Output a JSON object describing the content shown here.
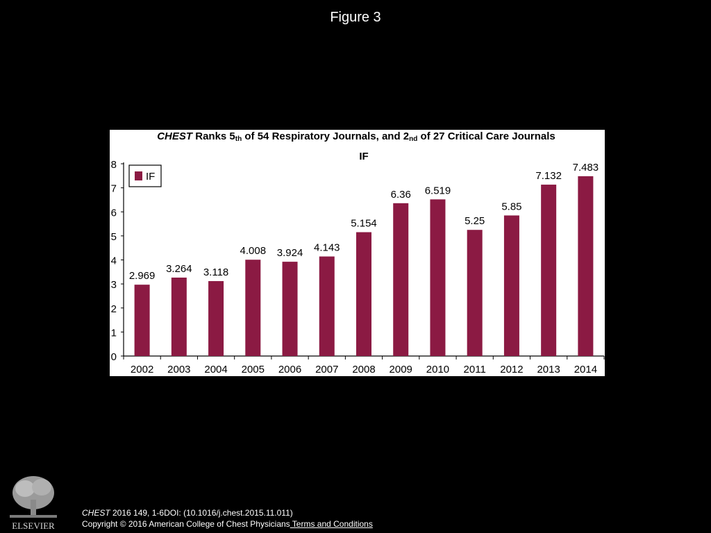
{
  "slide": {
    "title": "Figure 3"
  },
  "chart_data": {
    "type": "bar",
    "title_parts": {
      "journal": "CHEST",
      "ranks": " Ranks 5",
      "ordinal1": "th",
      "mid": " of 54 Respiratory Journals, and 2",
      "ordinal2": "nd",
      "tail": " of 27 Critical Care Journals"
    },
    "subtitle": "IF",
    "categories": [
      "2002",
      "2003",
      "2004",
      "2005",
      "2006",
      "2007",
      "2008",
      "2009",
      "2010",
      "2011",
      "2012",
      "2013",
      "2014"
    ],
    "series": [
      {
        "name": "IF",
        "values": [
          2.969,
          3.264,
          3.118,
          4.008,
          3.924,
          4.143,
          5.154,
          6.36,
          6.519,
          5.25,
          5.85,
          7.132,
          7.483
        ],
        "labels": [
          "2.969",
          "3.264",
          "3.118",
          "4.008",
          "3.924",
          "4.143",
          "5.154",
          "6.36",
          "6.519",
          "5.25",
          "5.85",
          "7.132",
          "7.483"
        ]
      }
    ],
    "xlabel": "",
    "ylabel": "",
    "ylim": [
      0,
      8
    ],
    "yticks": [
      "0",
      "1",
      "2",
      "3",
      "4",
      "5",
      "6",
      "7",
      "8"
    ],
    "legend_position": "top-left",
    "grid": false,
    "bar_color": "#8b1a43"
  },
  "footer": {
    "journal": "CHEST",
    "citation_rest": " 2016 149, 1-6DOI: (10.1016/j.chest.2015.11.011)",
    "copyright": "Copyright © 2016 American College of Chest Physicians",
    "terms_link": " Terms and Conditions",
    "publisher_logo_text": "ELSEVIER"
  }
}
